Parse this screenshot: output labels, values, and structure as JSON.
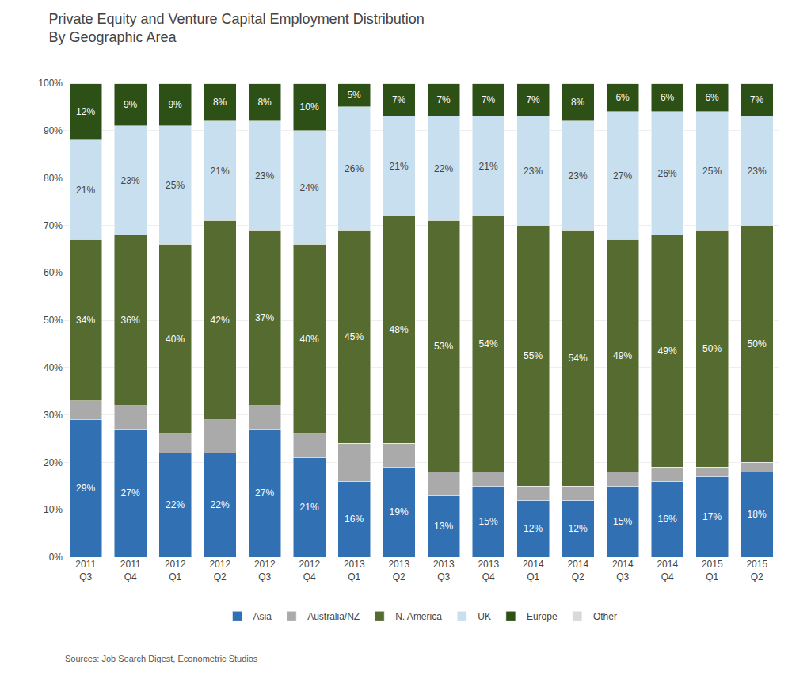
{
  "chart_data": {
    "type": "bar",
    "stacked": true,
    "title": "Private Equity and Venture Capital Employment Distribution\nBy Geographic Area",
    "annotations": [
      "Sources: Job Search Digest, Econometric Studios"
    ],
    "categories": [
      "2011\nQ3",
      "2011\nQ4",
      "2012\nQ1",
      "2012\nQ2",
      "2012\nQ3",
      "2012\nQ4",
      "2013\nQ1",
      "2013\nQ2",
      "2013\nQ3",
      "2013\nQ4",
      "2014\nQ1",
      "2014\nQ2",
      "2014\nQ3",
      "2014\nQ4",
      "2015\nQ1",
      "2015\nQ2"
    ],
    "series": [
      {
        "name": "Asia",
        "color": "#3070B3",
        "data_labels": true,
        "values": [
          29,
          27,
          22,
          22,
          27,
          21,
          16,
          19,
          13,
          15,
          12,
          12,
          15,
          16,
          17,
          18
        ],
        "value_labels": [
          "29%",
          "27%",
          "22%",
          "22%",
          "27%",
          "21%",
          "16%",
          "19%",
          "13%",
          "15%",
          "12%",
          "12%",
          "15%",
          "16%",
          "17%",
          "18%"
        ]
      },
      {
        "name": "Australia/NZ",
        "color": "#AAAAAA",
        "data_labels": false,
        "values": [
          4,
          5,
          4,
          7,
          5,
          5,
          8,
          5,
          5,
          3,
          3,
          3,
          3,
          3,
          2,
          2
        ]
      },
      {
        "name": "N. America",
        "color": "#556B2F",
        "data_labels": true,
        "values": [
          34,
          36,
          40,
          42,
          37,
          40,
          45,
          48,
          53,
          54,
          55,
          54,
          49,
          49,
          50,
          50
        ],
        "value_labels": [
          "34%",
          "36%",
          "40%",
          "42%",
          "37%",
          "40%",
          "45%",
          "48%",
          "53%",
          "54%",
          "55%",
          "54%",
          "49%",
          "49%",
          "50%",
          "50%"
        ]
      },
      {
        "name": "UK",
        "color": "#C8DFEF",
        "data_labels": true,
        "values": [
          21,
          23,
          25,
          21,
          23,
          24,
          26,
          21,
          22,
          21,
          23,
          23,
          27,
          26,
          25,
          23
        ],
        "value_labels": [
          "21%",
          "23%",
          "25%",
          "21%",
          "23%",
          "24%",
          "26%",
          "21%",
          "22%",
          "21%",
          "23%",
          "23%",
          "27%",
          "26%",
          "25%",
          "23%"
        ]
      },
      {
        "name": "Europe",
        "color": "#2D5016",
        "data_labels": true,
        "values": [
          12,
          9,
          9,
          8,
          8,
          10,
          5,
          7,
          7,
          7,
          7,
          8,
          6,
          6,
          6,
          7
        ],
        "value_labels": [
          "12%",
          "9%",
          "9%",
          "8%",
          "8%",
          "10%",
          "5%",
          "7%",
          "7%",
          "7%",
          "7%",
          "8%",
          "6%",
          "6%",
          "6%",
          "7%"
        ]
      },
      {
        "name": "Other",
        "color": "#D9D9D9",
        "data_labels": false,
        "values": [
          0,
          0,
          0,
          0,
          0,
          0,
          0,
          0,
          0,
          0,
          0,
          0,
          0,
          0,
          0,
          0
        ]
      }
    ],
    "ylim": [
      0,
      100
    ],
    "yticks": [
      {
        "value": 0,
        "label": "0%"
      },
      {
        "value": 10,
        "label": "10%"
      },
      {
        "value": 20,
        "label": "20%"
      },
      {
        "value": 30,
        "label": "30%"
      },
      {
        "value": 40,
        "label": "40%"
      },
      {
        "value": 50,
        "label": "50%"
      },
      {
        "value": 60,
        "label": "60%"
      },
      {
        "value": 70,
        "label": "70%"
      },
      {
        "value": 80,
        "label": "80%"
      },
      {
        "value": 90,
        "label": "90%"
      },
      {
        "value": 100,
        "label": "100%"
      }
    ],
    "grid": true,
    "legend": "bottom"
  }
}
